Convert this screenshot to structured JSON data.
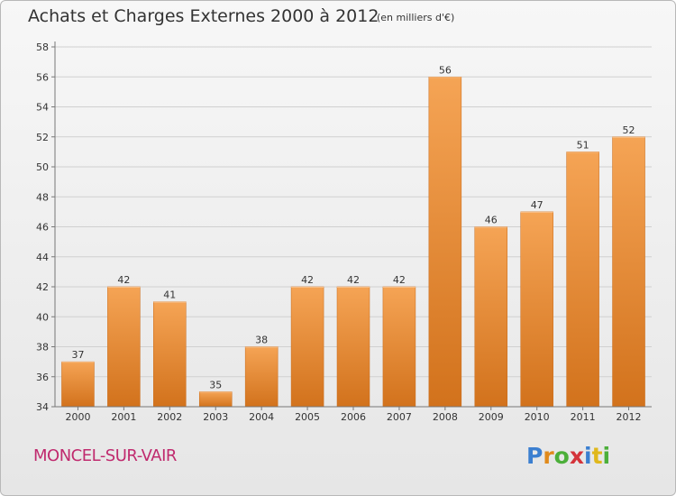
{
  "title": "Achats et Charges Externes 2000 à 2012",
  "subtitle": "(en milliers d'€)",
  "commune": "MONCEL-SUR-VAIR",
  "logo": {
    "text": "Proxiti",
    "letters": [
      {
        "char": "P",
        "color": "#3b7fd0"
      },
      {
        "char": "r",
        "color": "#e08a1c"
      },
      {
        "char": "o",
        "color": "#4caf3a"
      },
      {
        "char": "x",
        "color": "#d4333a"
      },
      {
        "char": "i",
        "color": "#3b7fd0"
      },
      {
        "char": "t",
        "color": "#e0b81c"
      },
      {
        "char": "i",
        "color": "#4caf3a"
      }
    ]
  },
  "colors": {
    "bar_top": "#f5a455",
    "bar_bottom": "#d2721c",
    "axis": "#777777",
    "grid": "#d0d0d0",
    "text": "#333333"
  },
  "chart_data": {
    "type": "bar",
    "categories": [
      "2000",
      "2001",
      "2002",
      "2003",
      "2004",
      "2005",
      "2006",
      "2007",
      "2008",
      "2009",
      "2010",
      "2011",
      "2012"
    ],
    "values": [
      37,
      42,
      41,
      35,
      38,
      42,
      42,
      42,
      56,
      46,
      47,
      51,
      52
    ],
    "ylim": [
      34,
      58
    ],
    "yticks": [
      34,
      36,
      38,
      40,
      42,
      44,
      46,
      48,
      50,
      52,
      54,
      56,
      58
    ],
    "grid": true,
    "data_labels": true
  }
}
